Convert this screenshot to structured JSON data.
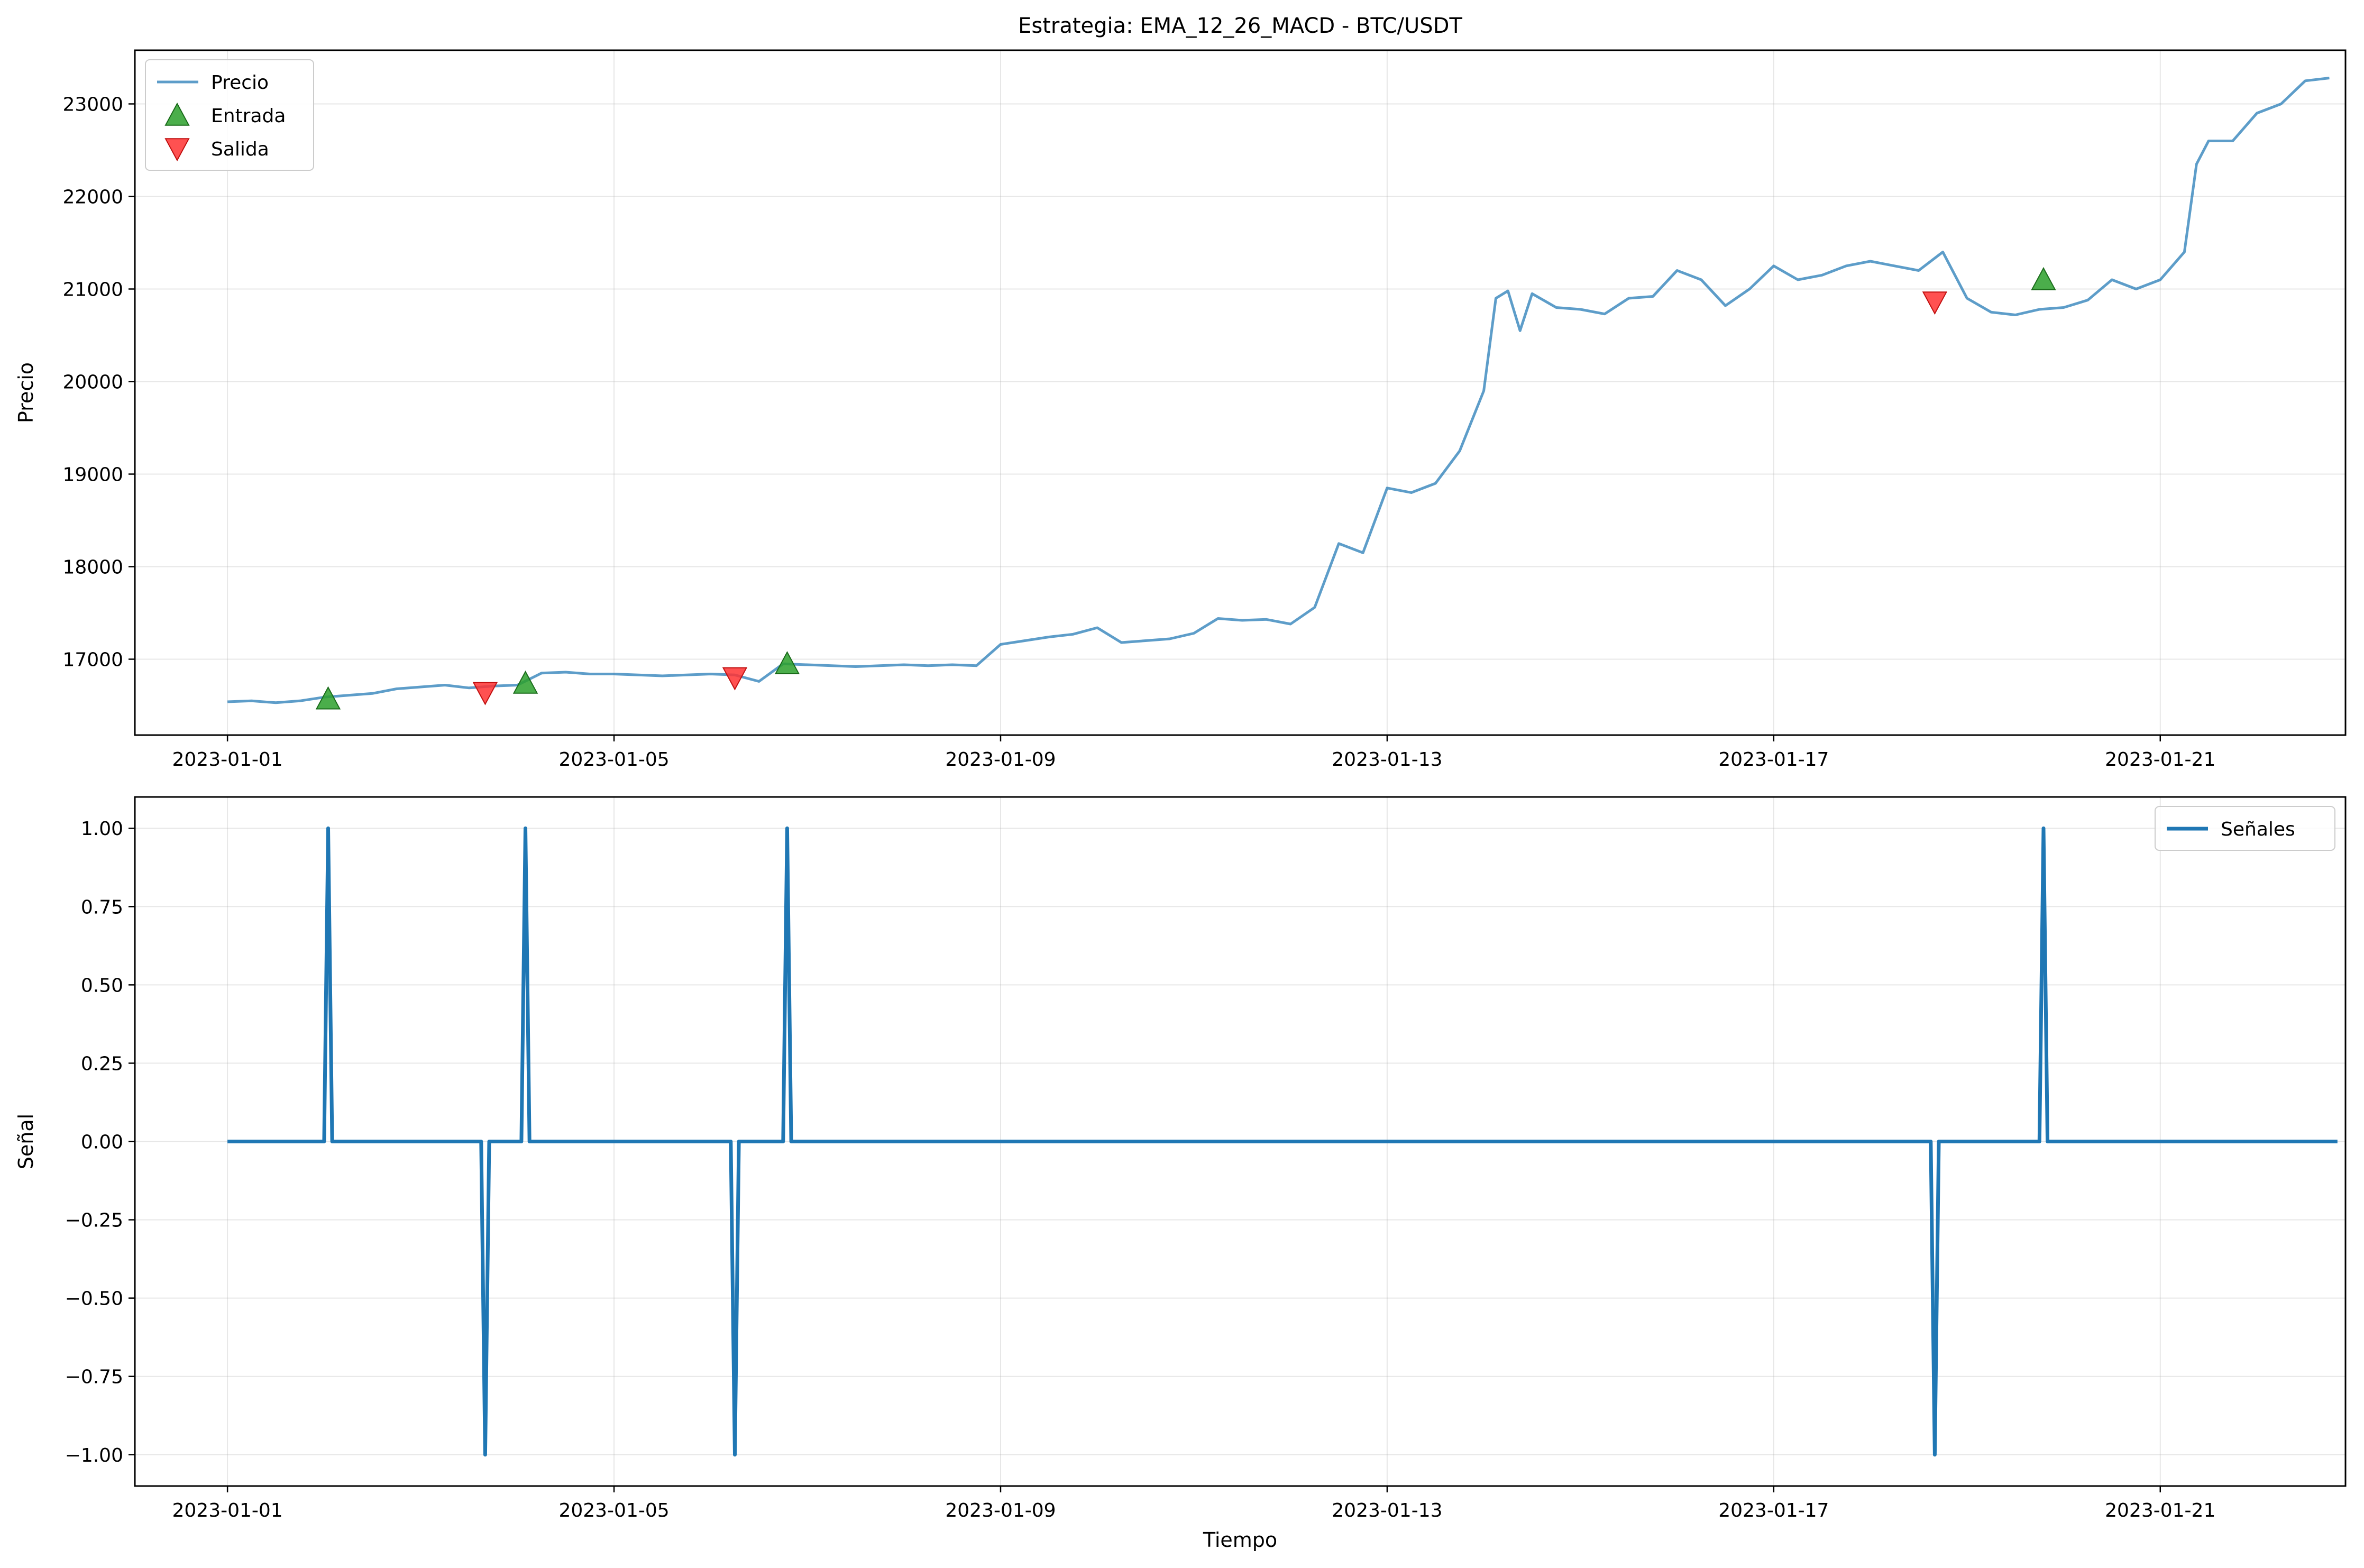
{
  "figure": {
    "title": "Estrategia: EMA_12_26_MACD - BTC/USDT"
  },
  "chart_data": [
    {
      "type": "line",
      "title": "Estrategia: EMA_12_26_MACD - BTC/USDT",
      "xlabel": "",
      "ylabel": "Precio",
      "x_axis": "date",
      "xlim": [
        "2022-12-31T01:00",
        "2023-01-22T22:00"
      ],
      "ylim": [
        16180,
        23580
      ],
      "xticks": [
        "2023-01-01",
        "2023-01-05",
        "2023-01-09",
        "2023-01-13",
        "2023-01-17",
        "2023-01-21"
      ],
      "yticks": [
        17000,
        18000,
        19000,
        20000,
        21000,
        22000,
        23000
      ],
      "grid": true,
      "legend": "top-left",
      "series": [
        {
          "name": "Precio",
          "kind": "line",
          "color": "#1f77b4",
          "points": [
            [
              "2023-01-01T00:00",
              16540
            ],
            [
              "2023-01-01T06:00",
              16550
            ],
            [
              "2023-01-01T12:00",
              16530
            ],
            [
              "2023-01-01T18:00",
              16550
            ],
            [
              "2023-01-02T00:00",
              16590
            ],
            [
              "2023-01-02T06:00",
              16610
            ],
            [
              "2023-01-02T12:00",
              16630
            ],
            [
              "2023-01-02T18:00",
              16680
            ],
            [
              "2023-01-03T00:00",
              16700
            ],
            [
              "2023-01-03T06:00",
              16720
            ],
            [
              "2023-01-03T12:00",
              16690
            ],
            [
              "2023-01-03T18:00",
              16710
            ],
            [
              "2023-01-04T00:00",
              16720
            ],
            [
              "2023-01-04T06:00",
              16850
            ],
            [
              "2023-01-04T12:00",
              16860
            ],
            [
              "2023-01-04T18:00",
              16840
            ],
            [
              "2023-01-05T00:00",
              16840
            ],
            [
              "2023-01-05T06:00",
              16830
            ],
            [
              "2023-01-05T12:00",
              16820
            ],
            [
              "2023-01-05T18:00",
              16830
            ],
            [
              "2023-01-06T00:00",
              16840
            ],
            [
              "2023-01-06T06:00",
              16830
            ],
            [
              "2023-01-06T12:00",
              16760
            ],
            [
              "2023-01-06T18:00",
              16950
            ],
            [
              "2023-01-07T00:00",
              16940
            ],
            [
              "2023-01-07T06:00",
              16930
            ],
            [
              "2023-01-07T12:00",
              16920
            ],
            [
              "2023-01-07T18:00",
              16930
            ],
            [
              "2023-01-08T00:00",
              16940
            ],
            [
              "2023-01-08T06:00",
              16930
            ],
            [
              "2023-01-08T12:00",
              16940
            ],
            [
              "2023-01-08T18:00",
              16930
            ],
            [
              "2023-01-09T00:00",
              17160
            ],
            [
              "2023-01-09T06:00",
              17200
            ],
            [
              "2023-01-09T12:00",
              17240
            ],
            [
              "2023-01-09T18:00",
              17270
            ],
            [
              "2023-01-10T00:00",
              17340
            ],
            [
              "2023-01-10T06:00",
              17180
            ],
            [
              "2023-01-10T12:00",
              17200
            ],
            [
              "2023-01-10T18:00",
              17220
            ],
            [
              "2023-01-11T00:00",
              17280
            ],
            [
              "2023-01-11T06:00",
              17440
            ],
            [
              "2023-01-11T12:00",
              17420
            ],
            [
              "2023-01-11T18:00",
              17430
            ],
            [
              "2023-01-12T00:00",
              17380
            ],
            [
              "2023-01-12T06:00",
              17560
            ],
            [
              "2023-01-12T12:00",
              18250
            ],
            [
              "2023-01-12T18:00",
              18150
            ],
            [
              "2023-01-13T00:00",
              18850
            ],
            [
              "2023-01-13T06:00",
              18800
            ],
            [
              "2023-01-13T12:00",
              18900
            ],
            [
              "2023-01-13T18:00",
              19250
            ],
            [
              "2023-01-14T00:00",
              19900
            ],
            [
              "2023-01-14T03:00",
              20900
            ],
            [
              "2023-01-14T06:00",
              20980
            ],
            [
              "2023-01-14T09:00",
              20550
            ],
            [
              "2023-01-14T12:00",
              20950
            ],
            [
              "2023-01-14T18:00",
              20800
            ],
            [
              "2023-01-15T00:00",
              20780
            ],
            [
              "2023-01-15T06:00",
              20730
            ],
            [
              "2023-01-15T12:00",
              20900
            ],
            [
              "2023-01-15T18:00",
              20920
            ],
            [
              "2023-01-16T00:00",
              21200
            ],
            [
              "2023-01-16T06:00",
              21100
            ],
            [
              "2023-01-16T12:00",
              20820
            ],
            [
              "2023-01-16T18:00",
              21000
            ],
            [
              "2023-01-17T00:00",
              21250
            ],
            [
              "2023-01-17T06:00",
              21100
            ],
            [
              "2023-01-17T12:00",
              21150
            ],
            [
              "2023-01-17T18:00",
              21250
            ],
            [
              "2023-01-18T00:00",
              21300
            ],
            [
              "2023-01-18T06:00",
              21250
            ],
            [
              "2023-01-18T12:00",
              21200
            ],
            [
              "2023-01-18T18:00",
              21400
            ],
            [
              "2023-01-19T00:00",
              20900
            ],
            [
              "2023-01-19T06:00",
              20750
            ],
            [
              "2023-01-19T12:00",
              20720
            ],
            [
              "2023-01-19T18:00",
              20780
            ],
            [
              "2023-01-20T00:00",
              20800
            ],
            [
              "2023-01-20T06:00",
              20880
            ],
            [
              "2023-01-20T12:00",
              21100
            ],
            [
              "2023-01-20T18:00",
              21000
            ],
            [
              "2023-01-21T00:00",
              21100
            ],
            [
              "2023-01-21T06:00",
              21400
            ],
            [
              "2023-01-21T09:00",
              22350
            ],
            [
              "2023-01-21T12:00",
              22600
            ],
            [
              "2023-01-21T18:00",
              22600
            ],
            [
              "2023-01-22T00:00",
              22900
            ],
            [
              "2023-01-22T06:00",
              23000
            ],
            [
              "2023-01-22T12:00",
              23250
            ],
            [
              "2023-01-22T18:00",
              23280
            ]
          ]
        },
        {
          "name": "Entrada",
          "kind": "marker-up",
          "color": "#2ca02c",
          "points": [
            [
              "2023-01-02T01:00",
              16570
            ],
            [
              "2023-01-04T02:00",
              16740
            ],
            [
              "2023-01-06T19:00",
              16950
            ],
            [
              "2023-01-19T19:00",
              21100
            ]
          ]
        },
        {
          "name": "Salida",
          "kind": "marker-down",
          "color": "#ff3333",
          "points": [
            [
              "2023-01-03T16:00",
              16640
            ],
            [
              "2023-01-06T06:00",
              16800
            ],
            [
              "2023-01-18T16:00",
              20860
            ]
          ]
        }
      ]
    },
    {
      "type": "line",
      "xlabel": "Tiempo",
      "ylabel": "Señal",
      "x_axis": "date",
      "xlim": [
        "2022-12-31T01:00",
        "2023-01-22T22:00"
      ],
      "ylim": [
        -1.1,
        1.1
      ],
      "xticks": [
        "2023-01-01",
        "2023-01-05",
        "2023-01-09",
        "2023-01-13",
        "2023-01-17",
        "2023-01-21"
      ],
      "yticks": [
        -1.0,
        -0.75,
        -0.5,
        -0.25,
        0.0,
        0.25,
        0.5,
        0.75,
        1.0
      ],
      "grid": true,
      "legend": "top-right",
      "series": [
        {
          "name": "Señales",
          "kind": "line",
          "color": "#1f77b4",
          "points": [
            [
              "2023-01-01T00:00",
              0
            ],
            [
              "2023-01-02T00:00",
              0
            ],
            [
              "2023-01-02T01:00",
              1
            ],
            [
              "2023-01-02T02:00",
              0
            ],
            [
              "2023-01-03T15:00",
              0
            ],
            [
              "2023-01-03T16:00",
              -1
            ],
            [
              "2023-01-03T17:00",
              0
            ],
            [
              "2023-01-04T01:00",
              0
            ],
            [
              "2023-01-04T02:00",
              1
            ],
            [
              "2023-01-04T03:00",
              0
            ],
            [
              "2023-01-06T05:00",
              0
            ],
            [
              "2023-01-06T06:00",
              -1
            ],
            [
              "2023-01-06T07:00",
              0
            ],
            [
              "2023-01-06T18:00",
              0
            ],
            [
              "2023-01-06T19:00",
              1
            ],
            [
              "2023-01-06T20:00",
              0
            ],
            [
              "2023-01-18T15:00",
              0
            ],
            [
              "2023-01-18T16:00",
              -1
            ],
            [
              "2023-01-18T17:00",
              0
            ],
            [
              "2023-01-19T18:00",
              0
            ],
            [
              "2023-01-19T19:00",
              1
            ],
            [
              "2023-01-19T20:00",
              0
            ],
            [
              "2023-01-22T20:00",
              0
            ]
          ]
        }
      ]
    }
  ]
}
